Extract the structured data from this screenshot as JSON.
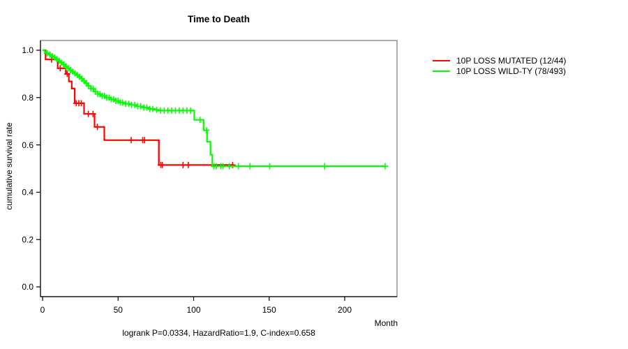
{
  "title": "Time to Death",
  "axes": {
    "y_label": "cumulative survival rate",
    "x_unit": "Month"
  },
  "caption": "logrank P=0.0334, HazardRatio=1.9, C-index=0.658",
  "legend": [
    {
      "label": "10P LOSS MUTATED (12/44)",
      "color": "#ff0000"
    },
    {
      "label": "10P LOSS WILD-TY (78/493)",
      "color": "#00ff00"
    }
  ],
  "chart_data": {
    "type": "line",
    "subtype": "kaplan-meier-step-function",
    "title": "Time to Death",
    "xlabel": "Month",
    "ylabel": "cumulative survival rate",
    "xlim": [
      0,
      235
    ],
    "ylim": [
      0,
      1.04
    ],
    "grid": false,
    "legend_position": "right-outside",
    "x_ticks": [
      0,
      50,
      100,
      150,
      200
    ],
    "y_ticks": [
      0.0,
      0.2,
      0.4,
      0.6,
      0.8,
      1.0
    ],
    "frame_color": "#808080",
    "axis_color": "#000000",
    "series": [
      {
        "name": "10P LOSS MUTATED (12/44)",
        "color": "#ff0000",
        "end_time": 126.6,
        "steps": [
          [
            0,
            1.0
          ],
          [
            2,
            0.961
          ],
          [
            10,
            0.924
          ],
          [
            15.4,
            0.9
          ],
          [
            17.4,
            0.868
          ],
          [
            19.3,
            0.838
          ],
          [
            21.3,
            0.776
          ],
          [
            27.5,
            0.731
          ],
          [
            34.4,
            0.676
          ],
          [
            40.9,
            0.62
          ],
          [
            77,
            0.515
          ]
        ],
        "censor_times": [
          6,
          11.7,
          16.3,
          22.3,
          24,
          25.6,
          30.3,
          33.4,
          36.3,
          58.6,
          66.3,
          67.5,
          78.3,
          79.3,
          93,
          96.5,
          125.8
        ]
      },
      {
        "name": "10P LOSS WILD-TY (78/493)",
        "color": "#00ff00",
        "end_time": 226.8,
        "steps": [
          [
            0,
            1.0
          ],
          [
            1.5,
            0.993
          ],
          [
            3,
            0.987
          ],
          [
            4.5,
            0.981
          ],
          [
            6,
            0.975
          ],
          [
            7.5,
            0.969
          ],
          [
            9,
            0.962
          ],
          [
            10.5,
            0.955
          ],
          [
            12,
            0.948
          ],
          [
            13.5,
            0.94
          ],
          [
            15,
            0.932
          ],
          [
            16.5,
            0.924
          ],
          [
            18,
            0.916
          ],
          [
            19.5,
            0.909
          ],
          [
            21,
            0.902
          ],
          [
            22.5,
            0.895
          ],
          [
            24,
            0.888
          ],
          [
            25.5,
            0.88
          ],
          [
            27,
            0.87
          ],
          [
            28.5,
            0.861
          ],
          [
            30,
            0.85
          ],
          [
            31.9,
            0.838
          ],
          [
            34,
            0.825
          ],
          [
            36.5,
            0.815
          ],
          [
            39,
            0.807
          ],
          [
            42,
            0.8
          ],
          [
            45,
            0.793
          ],
          [
            48,
            0.786
          ],
          [
            51,
            0.779
          ],
          [
            54,
            0.774
          ],
          [
            58,
            0.769
          ],
          [
            62,
            0.763
          ],
          [
            66,
            0.758
          ],
          [
            70,
            0.752
          ],
          [
            74,
            0.748
          ],
          [
            77,
            0.745
          ],
          [
            100.4,
            0.706
          ],
          [
            106.6,
            0.662
          ],
          [
            108.9,
            0.613
          ],
          [
            111.2,
            0.559
          ],
          [
            112.4,
            0.51
          ]
        ],
        "censor_times": [
          3,
          5,
          6.5,
          8,
          9.5,
          11,
          12.5,
          14,
          15.5,
          17,
          18.5,
          20,
          21.5,
          23,
          24.5,
          26,
          27.5,
          29,
          30.5,
          32,
          33.5,
          35,
          36.5,
          38,
          39.5,
          41,
          42.5,
          44,
          45.5,
          47,
          48.5,
          50,
          51.5,
          53,
          55,
          57,
          59,
          61,
          63,
          65,
          67,
          69,
          71,
          73,
          75.5,
          78,
          80.5,
          83,
          85.5,
          88,
          90.5,
          93,
          95.5,
          98,
          104.2,
          108.5,
          113.5,
          115,
          118,
          119.5,
          123.6,
          129.6,
          137.3,
          150.4,
          186.7,
          226.8
        ]
      }
    ]
  }
}
